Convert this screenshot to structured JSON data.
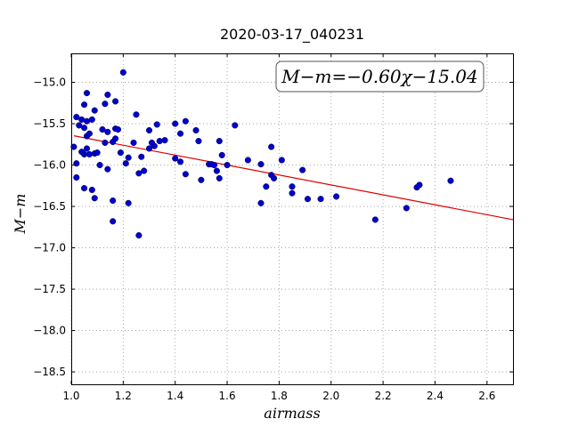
{
  "chart_data": {
    "type": "scatter",
    "title": "2020-03-17_040231",
    "xlabel": "airmass",
    "ylabel": "M−m",
    "xlim": [
      1.0,
      2.7
    ],
    "ylim": [
      -18.65,
      -14.65
    ],
    "x_ticks": [
      "1.0",
      "1.2",
      "1.4",
      "1.6",
      "1.8",
      "2.0",
      "2.2",
      "2.4",
      "2.6"
    ],
    "y_ticks": [
      "−15.0",
      "−15.5",
      "−16.0",
      "−16.5",
      "−17.0",
      "−17.5",
      "−18.0",
      "−18.5"
    ],
    "grid": true,
    "annotation": "M−m=−0.60χ−15.04",
    "colors": {
      "points": "#0000cc",
      "fit_line": "#dd0000",
      "grid": "#999999"
    },
    "fit": {
      "slope": -0.6,
      "intercept": -15.04,
      "x_range": [
        1.01,
        2.7
      ]
    },
    "points": [
      [
        1.01,
        -15.78
      ],
      [
        1.02,
        -15.42
      ],
      [
        1.02,
        -15.98
      ],
      [
        1.02,
        -16.15
      ],
      [
        1.03,
        -15.52
      ],
      [
        1.04,
        -15.45
      ],
      [
        1.04,
        -15.84
      ],
      [
        1.05,
        -15.27
      ],
      [
        1.05,
        -15.55
      ],
      [
        1.05,
        -15.87
      ],
      [
        1.05,
        -16.28
      ],
      [
        1.06,
        -15.13
      ],
      [
        1.06,
        -15.47
      ],
      [
        1.06,
        -15.8
      ],
      [
        1.06,
        -15.65
      ],
      [
        1.07,
        -15.62
      ],
      [
        1.07,
        -15.87
      ],
      [
        1.08,
        -16.3
      ],
      [
        1.08,
        -15.45
      ],
      [
        1.09,
        -15.34
      ],
      [
        1.09,
        -15.86
      ],
      [
        1.09,
        -16.4
      ],
      [
        1.1,
        -15.85
      ],
      [
        1.11,
        -16.0
      ],
      [
        1.12,
        -15.57
      ],
      [
        1.13,
        -15.73
      ],
      [
        1.13,
        -15.26
      ],
      [
        1.14,
        -15.15
      ],
      [
        1.14,
        -15.6
      ],
      [
        1.14,
        -16.05
      ],
      [
        1.16,
        -15.72
      ],
      [
        1.16,
        -16.43
      ],
      [
        1.16,
        -16.68
      ],
      [
        1.17,
        -15.23
      ],
      [
        1.17,
        -15.56
      ],
      [
        1.17,
        -15.68
      ],
      [
        1.18,
        -15.57
      ],
      [
        1.19,
        -15.85
      ],
      [
        1.2,
        -14.88
      ],
      [
        1.21,
        -15.98
      ],
      [
        1.22,
        -16.46
      ],
      [
        1.22,
        -15.91
      ],
      [
        1.24,
        -15.73
      ],
      [
        1.25,
        -15.39
      ],
      [
        1.26,
        -16.1
      ],
      [
        1.26,
        -16.85
      ],
      [
        1.27,
        -15.9
      ],
      [
        1.28,
        -16.07
      ],
      [
        1.3,
        -15.8
      ],
      [
        1.3,
        -15.58
      ],
      [
        1.31,
        -15.73
      ],
      [
        1.32,
        -15.77
      ],
      [
        1.33,
        -15.51
      ],
      [
        1.34,
        -15.71
      ],
      [
        1.36,
        -15.7
      ],
      [
        1.4,
        -15.5
      ],
      [
        1.4,
        -15.92
      ],
      [
        1.42,
        -15.96
      ],
      [
        1.42,
        -15.62
      ],
      [
        1.44,
        -15.47
      ],
      [
        1.44,
        -16.11
      ],
      [
        1.48,
        -15.58
      ],
      [
        1.49,
        -15.71
      ],
      [
        1.5,
        -16.18
      ],
      [
        1.53,
        -15.99
      ],
      [
        1.54,
        -15.99
      ],
      [
        1.55,
        -16.0
      ],
      [
        1.56,
        -16.07
      ],
      [
        1.57,
        -15.71
      ],
      [
        1.57,
        -16.16
      ],
      [
        1.58,
        -15.88
      ],
      [
        1.6,
        -16.0
      ],
      [
        1.63,
        -15.52
      ],
      [
        1.68,
        -15.94
      ],
      [
        1.73,
        -15.99
      ],
      [
        1.73,
        -16.46
      ],
      [
        1.75,
        -16.26
      ],
      [
        1.77,
        -15.78
      ],
      [
        1.77,
        -16.12
      ],
      [
        1.78,
        -16.16
      ],
      [
        1.81,
        -15.94
      ],
      [
        1.85,
        -16.26
      ],
      [
        1.85,
        -16.34
      ],
      [
        1.89,
        -16.06
      ],
      [
        1.91,
        -16.41
      ],
      [
        1.96,
        -16.41
      ],
      [
        2.02,
        -16.38
      ],
      [
        2.17,
        -16.66
      ],
      [
        2.29,
        -16.52
      ],
      [
        2.33,
        -16.27
      ],
      [
        2.34,
        -16.24
      ],
      [
        2.46,
        -16.19
      ]
    ]
  }
}
